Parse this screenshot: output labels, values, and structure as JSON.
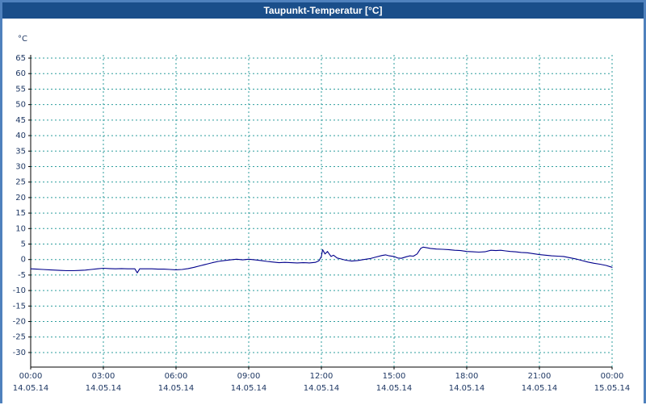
{
  "window": {
    "title": "Taupunkt-Temperatur [°C]"
  },
  "colors": {
    "border": "#4f81bd",
    "titlebar_bg": "#1a4e8a",
    "titlebar_text": "#ffffff",
    "plot_bg": "#ffffff",
    "grid": "#2e9e9e",
    "axis": "#000000",
    "tick_text": "#1f3864",
    "series": "#00008b"
  },
  "chart_data": {
    "type": "line",
    "title": "Taupunkt-Temperatur [°C]",
    "ylabel": "°C",
    "xlabel": "",
    "grid": true,
    "legend": false,
    "y_ticks": [
      65,
      60,
      55,
      50,
      45,
      40,
      35,
      30,
      25,
      20,
      15,
      10,
      5,
      0,
      -5,
      -10,
      -15,
      -20,
      -25,
      -30
    ],
    "y_range": [
      -34.7,
      66.05
    ],
    "x_range": [
      0,
      24
    ],
    "x_ticks": [
      {
        "hour": 0,
        "time": "00:00",
        "date": "14.05.14"
      },
      {
        "hour": 3,
        "time": "03:00",
        "date": "14.05.14"
      },
      {
        "hour": 6,
        "time": "06:00",
        "date": "14.05.14"
      },
      {
        "hour": 9,
        "time": "09:00",
        "date": "14.05.14"
      },
      {
        "hour": 12,
        "time": "12:00",
        "date": "14.05.14"
      },
      {
        "hour": 15,
        "time": "15:00",
        "date": "14.05.14"
      },
      {
        "hour": 18,
        "time": "18:00",
        "date": "14.05.14"
      },
      {
        "hour": 21,
        "time": "21:00",
        "date": "14.05.14"
      },
      {
        "hour": 24,
        "time": "00:00",
        "date": "15.05.14"
      }
    ],
    "series": [
      {
        "name": "Taupunkt-Temperatur",
        "color": "#00008b",
        "x_hours": [
          0,
          0.25,
          0.5,
          0.75,
          1,
          1.25,
          1.5,
          1.75,
          2,
          2.25,
          2.5,
          2.75,
          3,
          3.25,
          3.5,
          3.75,
          4,
          4.3,
          4.4,
          4.5,
          4.75,
          5,
          5.25,
          5.5,
          5.75,
          6,
          6.25,
          6.5,
          6.75,
          7,
          7.25,
          7.5,
          7.75,
          8,
          8.25,
          8.5,
          8.75,
          9,
          9.25,
          9.5,
          9.75,
          10,
          10.25,
          10.5,
          10.75,
          11,
          11.25,
          11.5,
          11.75,
          11.9,
          12,
          12.05,
          12.15,
          12.25,
          12.4,
          12.5,
          12.65,
          12.8,
          13,
          13.25,
          13.5,
          13.75,
          14,
          14.25,
          14.5,
          14.65,
          14.8,
          15,
          15.15,
          15.3,
          15.5,
          15.65,
          15.8,
          15.95,
          16.1,
          16.2,
          16.35,
          16.5,
          16.75,
          17,
          17.25,
          17.5,
          17.75,
          18,
          18.25,
          18.5,
          18.75,
          19,
          19.2,
          19.4,
          19.6,
          19.8,
          20,
          20.25,
          20.5,
          20.75,
          21,
          21.25,
          21.5,
          21.75,
          22,
          22.25,
          22.5,
          22.75,
          23,
          23.25,
          23.5,
          23.75,
          24
        ],
        "values": [
          -3,
          -3.1,
          -3.2,
          -3.3,
          -3.4,
          -3.5,
          -3.6,
          -3.6,
          -3.5,
          -3.4,
          -3.2,
          -3,
          -2.8,
          -2.9,
          -3,
          -2.9,
          -3,
          -3,
          -4.3,
          -3,
          -3,
          -3,
          -3.1,
          -3.1,
          -3.2,
          -3.3,
          -3.2,
          -2.9,
          -2.5,
          -2,
          -1.5,
          -1,
          -0.6,
          -0.3,
          -0.1,
          0.1,
          -0.1,
          0.1,
          -0.1,
          -0.3,
          -0.6,
          -0.8,
          -1,
          -0.9,
          -1,
          -1.1,
          -1,
          -1.1,
          -0.9,
          -0.4,
          1,
          3.2,
          1.8,
          2.6,
          1,
          1.4,
          0.5,
          0.2,
          -0.2,
          -0.5,
          -0.3,
          0,
          0.3,
          0.8,
          1.3,
          1.5,
          1.2,
          1,
          0.5,
          0.4,
          0.9,
          1.2,
          1.1,
          1.8,
          3.6,
          4,
          3.8,
          3.6,
          3.4,
          3.3,
          3.2,
          3,
          2.9,
          2.6,
          2.5,
          2.4,
          2.5,
          3,
          2.9,
          3,
          2.8,
          2.6,
          2.5,
          2.3,
          2.2,
          1.9,
          1.6,
          1.4,
          1.2,
          1.1,
          1,
          0.6,
          0.2,
          -0.3,
          -0.8,
          -1.2,
          -1.5,
          -1.9,
          -2.5
        ]
      }
    ]
  }
}
